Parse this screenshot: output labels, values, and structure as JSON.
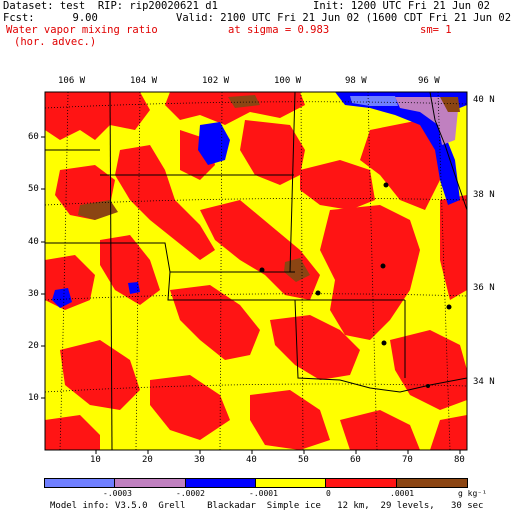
{
  "header": {
    "line1_left": "Dataset: test  RIP: rip20020621 d1",
    "line1_right": "Init: 1200 UTC Fri 21 Jun 02",
    "line2_left": "Fcst:      9.00",
    "line2_right": "Valid: 2100 UTC Fri 21 Jun 02 (1600 CDT Fri 21 Jun 02)",
    "field_name": "Water vapor mixing ratio",
    "field_sub": "(hor. advec.)",
    "sigma": "at sigma = 0.983",
    "sm": "sm= 1"
  },
  "map": {
    "lon_labels": [
      "106 W",
      "104 W",
      "102 W",
      "100 W",
      "98 W",
      "96 W"
    ],
    "lat_labels": [
      "40 N",
      "38 N",
      "36 N",
      "34 N"
    ],
    "y_ticks": [
      "60",
      "50",
      "40",
      "30",
      "20",
      "10"
    ],
    "x_ticks": [
      "10",
      "20",
      "30",
      "40",
      "50",
      "60",
      "70",
      "80"
    ],
    "colors": {
      "fill_yellow": "#ffff00",
      "fill_red": "#ff1414",
      "fill_blue": "#0000ff",
      "fill_light_blue": "#6f7fff",
      "fill_purple": "#c080c0",
      "fill_brown": "#8b4513"
    }
  },
  "colorbar": {
    "colors": [
      "#6f7fff",
      "#c080c0",
      "#0000ff",
      "#ffff00",
      "#ff1414",
      "#8b4513"
    ],
    "labels": [
      "-.0003",
      "-.0002",
      "-.0001",
      "0",
      ".0001"
    ],
    "units": "g kg⁻¹"
  },
  "footer": {
    "model_info": "Model info: V3.5.0  Grell    Blackadar  Simple ice   12 km,  29 levels,   30 sec"
  }
}
